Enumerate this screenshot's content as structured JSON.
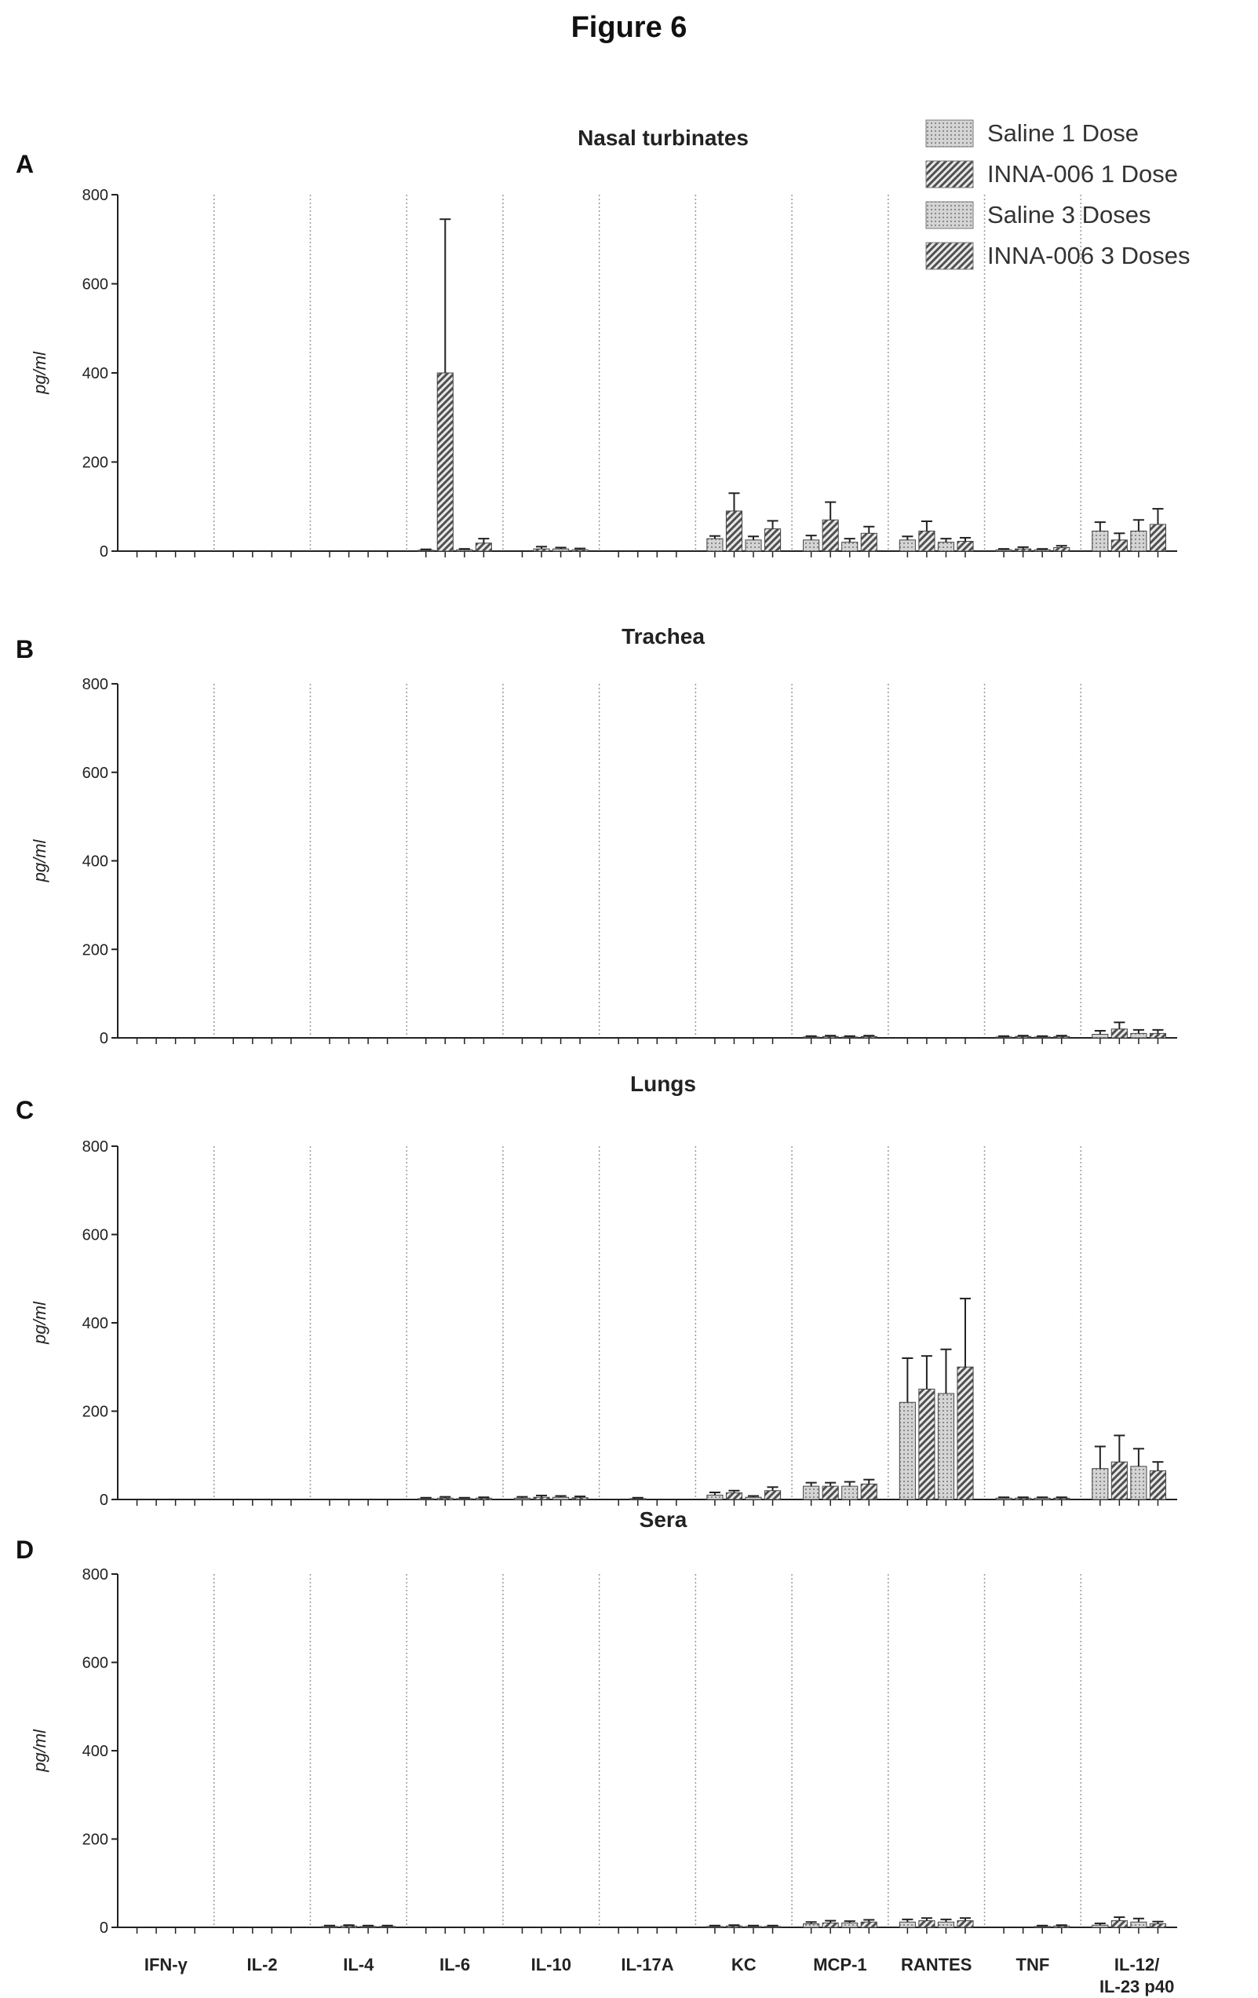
{
  "figure": {
    "title": "Figure 6"
  },
  "legend": [
    "Saline 1 Dose",
    "INNA-006 1 Dose",
    "Saline 3 Doses",
    "INNA-006 3 Doses"
  ],
  "colors": {
    "saline": "#c8c8c8",
    "inna": "#666666"
  },
  "chart_data": [
    {
      "type": "bar",
      "panel": "A",
      "title": "Nasal turbinates",
      "ylabel": "pg/ml",
      "ylim": [
        0,
        800
      ],
      "yticks": [
        0,
        200,
        400,
        600,
        800
      ],
      "categories": [
        "IFN-γ",
        "IL-2",
        "IL-4",
        "IL-6",
        "IL-10",
        "IL-17A",
        "KC",
        "MCP-1",
        "RANTES",
        "TNF",
        "IL-12/ IL-23 p40"
      ],
      "series": [
        {
          "name": "Saline 1 Dose",
          "values": [
            0,
            0,
            0,
            2,
            0,
            0,
            28,
            25,
            25,
            3,
            45
          ],
          "errors": [
            0,
            0,
            0,
            2,
            0,
            0,
            6,
            10,
            8,
            2,
            20
          ]
        },
        {
          "name": "INNA-006 1 Dose",
          "values": [
            0,
            0,
            0,
            400,
            5,
            0,
            90,
            70,
            45,
            5,
            25
          ],
          "errors": [
            0,
            0,
            0,
            345,
            5,
            0,
            40,
            40,
            22,
            4,
            15
          ]
        },
        {
          "name": "Saline 3 Doses",
          "values": [
            0,
            0,
            0,
            3,
            5,
            0,
            25,
            20,
            20,
            3,
            45
          ],
          "errors": [
            0,
            0,
            0,
            2,
            3,
            0,
            8,
            8,
            8,
            2,
            25
          ]
        },
        {
          "name": "INNA-006 3 Doses",
          "values": [
            0,
            0,
            0,
            18,
            3,
            0,
            50,
            40,
            22,
            8,
            60
          ],
          "errors": [
            0,
            0,
            0,
            10,
            3,
            0,
            18,
            15,
            8,
            4,
            35
          ]
        }
      ]
    },
    {
      "type": "bar",
      "panel": "B",
      "title": "Trachea",
      "ylabel": "pg/ml",
      "ylim": [
        0,
        800
      ],
      "yticks": [
        0,
        200,
        400,
        600,
        800
      ],
      "categories": [
        "IFN-γ",
        "IL-2",
        "IL-4",
        "IL-6",
        "IL-10",
        "IL-17A",
        "KC",
        "MCP-1",
        "RANTES",
        "TNF",
        "IL-12/ IL-23 p40"
      ],
      "series": [
        {
          "name": "Saline 1 Dose",
          "values": [
            0,
            0,
            0,
            0,
            0,
            0,
            0,
            2,
            0,
            2,
            8
          ],
          "errors": [
            0,
            0,
            0,
            0,
            0,
            0,
            0,
            2,
            0,
            2,
            8
          ]
        },
        {
          "name": "INNA-006 1 Dose",
          "values": [
            0,
            0,
            0,
            0,
            0,
            0,
            0,
            3,
            0,
            3,
            20
          ],
          "errors": [
            0,
            0,
            0,
            0,
            0,
            0,
            0,
            2,
            0,
            2,
            15
          ]
        },
        {
          "name": "Saline 3 Doses",
          "values": [
            0,
            0,
            0,
            0,
            0,
            0,
            0,
            2,
            0,
            2,
            10
          ],
          "errors": [
            0,
            0,
            0,
            0,
            0,
            0,
            0,
            2,
            0,
            2,
            8
          ]
        },
        {
          "name": "INNA-006 3 Doses",
          "values": [
            0,
            0,
            0,
            0,
            0,
            0,
            0,
            3,
            0,
            3,
            10
          ],
          "errors": [
            0,
            0,
            0,
            0,
            0,
            0,
            0,
            2,
            0,
            2,
            8
          ]
        }
      ]
    },
    {
      "type": "bar",
      "panel": "C",
      "title": "Lungs",
      "ylabel": "pg/ml",
      "ylim": [
        0,
        800
      ],
      "yticks": [
        0,
        200,
        400,
        600,
        800
      ],
      "categories": [
        "IFN-γ",
        "IL-2",
        "IL-4",
        "IL-6",
        "IL-10",
        "IL-17A",
        "KC",
        "MCP-1",
        "RANTES",
        "TNF",
        "IL-12/ IL-23 p40"
      ],
      "series": [
        {
          "name": "Saline 1 Dose",
          "values": [
            0,
            0,
            0,
            2,
            3,
            0,
            10,
            30,
            220,
            3,
            70
          ],
          "errors": [
            0,
            0,
            0,
            2,
            3,
            0,
            6,
            8,
            100,
            2,
            50
          ]
        },
        {
          "name": "INNA-006 1 Dose",
          "values": [
            0,
            0,
            0,
            3,
            5,
            2,
            15,
            30,
            250,
            3,
            85
          ],
          "errors": [
            0,
            0,
            0,
            3,
            4,
            2,
            5,
            8,
            75,
            2,
            60
          ]
        },
        {
          "name": "Saline 3 Doses",
          "values": [
            0,
            0,
            0,
            2,
            5,
            0,
            5,
            30,
            240,
            3,
            75
          ],
          "errors": [
            0,
            0,
            0,
            2,
            3,
            0,
            3,
            10,
            100,
            2,
            40
          ]
        },
        {
          "name": "INNA-006 3 Doses",
          "values": [
            0,
            0,
            0,
            3,
            4,
            0,
            20,
            35,
            300,
            3,
            65
          ],
          "errors": [
            0,
            0,
            0,
            2,
            3,
            0,
            8,
            10,
            155,
            2,
            20
          ]
        }
      ]
    },
    {
      "type": "bar",
      "panel": "D",
      "title": "Sera",
      "ylabel": "pg/ml",
      "ylim": [
        0,
        800
      ],
      "yticks": [
        0,
        200,
        400,
        600,
        800
      ],
      "categories": [
        "IFN-γ",
        "IL-2",
        "IL-4",
        "IL-6",
        "IL-10",
        "IL-17A",
        "KC",
        "MCP-1",
        "RANTES",
        "TNF",
        "IL-12/ IL-23 p40"
      ],
      "series": [
        {
          "name": "Saline 1 Dose",
          "values": [
            0,
            0,
            2,
            0,
            0,
            0,
            2,
            8,
            12,
            0,
            5
          ],
          "errors": [
            0,
            0,
            2,
            0,
            0,
            0,
            2,
            4,
            6,
            0,
            4
          ]
        },
        {
          "name": "INNA-006 1 Dose",
          "values": [
            0,
            0,
            3,
            0,
            0,
            0,
            3,
            10,
            15,
            0,
            15
          ],
          "errors": [
            0,
            0,
            2,
            0,
            0,
            0,
            2,
            5,
            6,
            0,
            8
          ]
        },
        {
          "name": "Saline 3 Doses",
          "values": [
            0,
            0,
            2,
            0,
            0,
            0,
            2,
            10,
            12,
            2,
            12
          ],
          "errors": [
            0,
            0,
            2,
            0,
            0,
            0,
            2,
            4,
            6,
            2,
            8
          ]
        },
        {
          "name": "INNA-006 3 Doses",
          "values": [
            0,
            0,
            2,
            0,
            0,
            0,
            2,
            12,
            15,
            3,
            8
          ],
          "errors": [
            0,
            0,
            2,
            0,
            0,
            0,
            2,
            5,
            6,
            2,
            5
          ]
        }
      ]
    }
  ]
}
